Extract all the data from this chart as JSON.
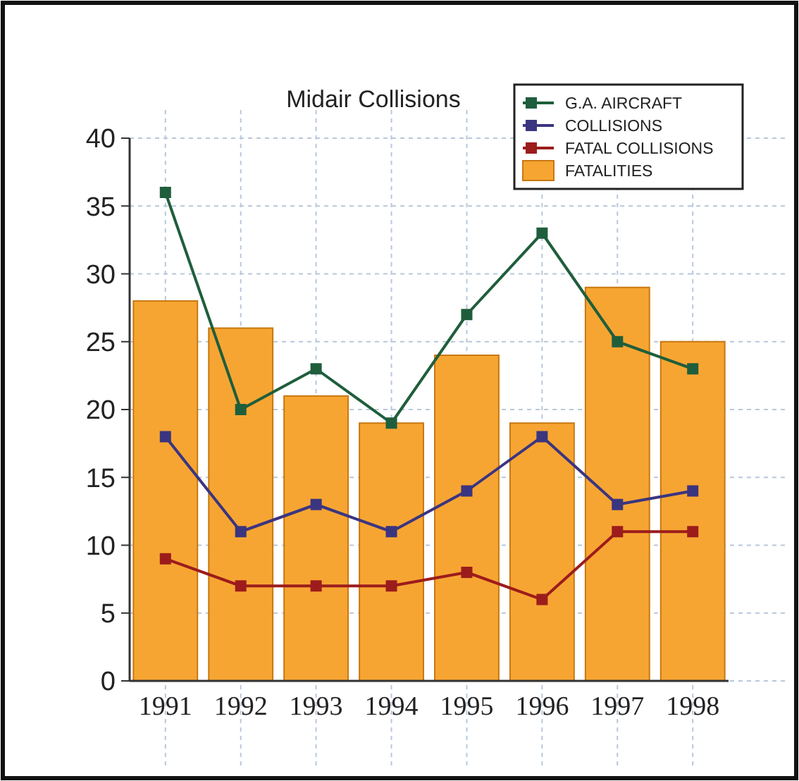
{
  "chart_data": {
    "type": "bar",
    "title": "Midair Collisions",
    "categories": [
      "1991",
      "1992",
      "1993",
      "1994",
      "1995",
      "1996",
      "1997",
      "1998"
    ],
    "series": [
      {
        "name": "FATALITIES",
        "color": "#f7a532",
        "values": [
          28,
          26,
          21,
          19,
          24,
          19,
          29,
          25
        ]
      },
      {
        "name": "G.A. AIRCRAFT",
        "type": "line",
        "color": "#1f5e3c",
        "values": [
          36,
          20,
          23,
          19,
          27,
          33,
          25,
          23
        ]
      },
      {
        "name": "COLLISIONS",
        "type": "line",
        "color": "#3b3580",
        "values": [
          18,
          11,
          13,
          11,
          14,
          18,
          13,
          14
        ]
      },
      {
        "name": "FATAL COLLISIONS",
        "type": "line",
        "color": "#9c1c1c",
        "values": [
          9,
          7,
          7,
          7,
          8,
          6,
          11,
          11
        ]
      }
    ],
    "ylim": [
      0,
      40
    ],
    "yticks": [
      0,
      5,
      10,
      15,
      20,
      25,
      30,
      35,
      40
    ],
    "grid": true,
    "legend": "top right",
    "marker": "square",
    "line_style": "solid"
  }
}
